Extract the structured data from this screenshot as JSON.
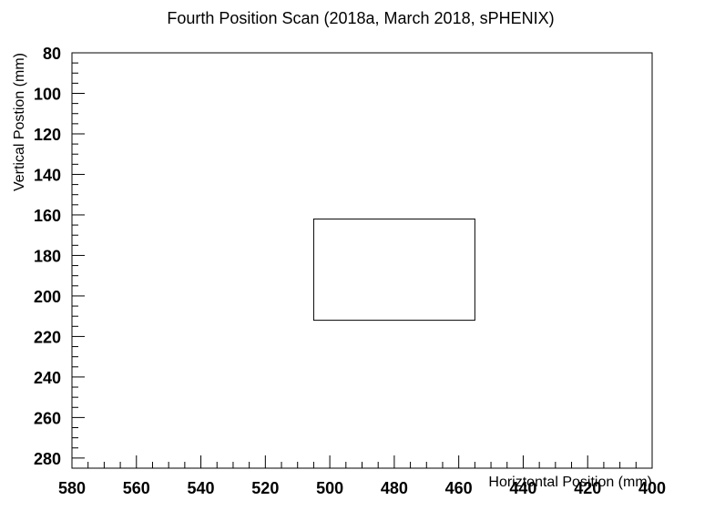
{
  "chart_data": {
    "type": "scatter",
    "title": "Fourth Position Scan (2018a, March 2018, sPHENIX)",
    "xlabel": "Horiztontal Position (mm)",
    "ylabel": "Vertical Postion (mm)",
    "xlim": [
      580,
      400
    ],
    "ylim": [
      80,
      285
    ],
    "x_reversed": true,
    "y_reversed": true,
    "x_ticks": [
      580,
      560,
      540,
      520,
      500,
      480,
      460,
      440,
      420,
      400
    ],
    "y_ticks": [
      80,
      100,
      120,
      140,
      160,
      180,
      200,
      220,
      240,
      260,
      280
    ],
    "x_minor_step": 4,
    "y_minor_step": 4,
    "grid": false,
    "regions": [
      {
        "x_min": 455,
        "x_max": 505,
        "y_min": 162,
        "y_max": 212
      }
    ]
  }
}
